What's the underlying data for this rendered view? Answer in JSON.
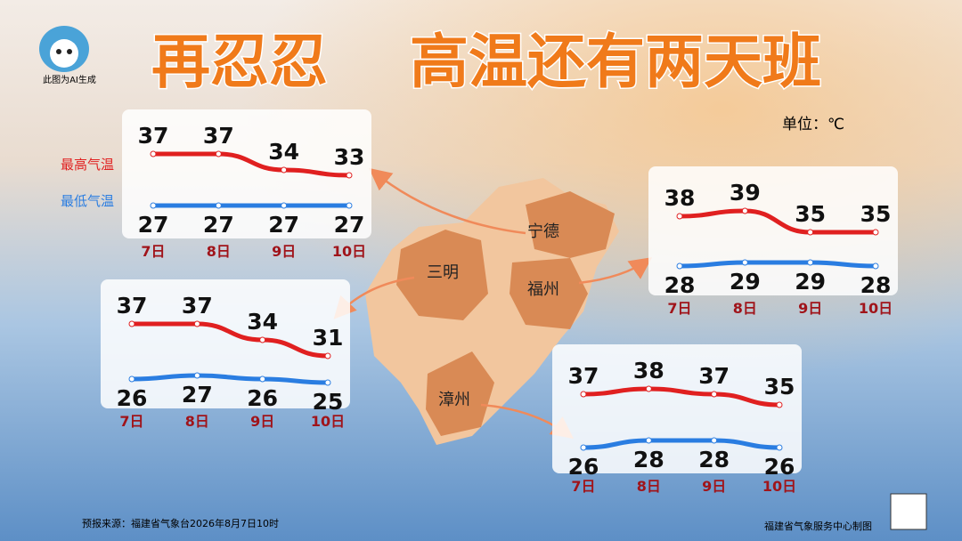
{
  "header": {
    "title_left": "再忍忍",
    "title_right": "高温还有两天班",
    "ai_note": "此图为AI生成",
    "unit": "单位：℃"
  },
  "footer": {
    "source": "预报来源：福建省气象台2026年8月7日10时",
    "maker": "福建省气象服务中心制图"
  },
  "chart_data": [
    {
      "type": "line",
      "title": "宁德",
      "categories": [
        "7日",
        "8日",
        "9日",
        "10日"
      ],
      "series": [
        {
          "name": "最高气温",
          "color": "#e02020",
          "values": [
            37,
            37,
            34,
            33
          ]
        },
        {
          "name": "最低气温",
          "color": "#2a7de1",
          "values": [
            27,
            27,
            27,
            27
          ]
        }
      ]
    },
    {
      "type": "line",
      "title": "三明",
      "categories": [
        "7日",
        "8日",
        "9日",
        "10日"
      ],
      "series": [
        {
          "color": "#e02020",
          "values": [
            37,
            37,
            34,
            31
          ]
        },
        {
          "color": "#2a7de1",
          "values": [
            26,
            27,
            26,
            25
          ]
        }
      ]
    },
    {
      "type": "line",
      "title": "福州",
      "categories": [
        "7日",
        "8日",
        "9日",
        "10日"
      ],
      "series": [
        {
          "color": "#e02020",
          "values": [
            38,
            39,
            35,
            35
          ]
        },
        {
          "color": "#2a7de1",
          "values": [
            28,
            29,
            29,
            28
          ]
        }
      ]
    },
    {
      "type": "line",
      "title": "漳州",
      "categories": [
        "7日",
        "8日",
        "9日",
        "10日"
      ],
      "series": [
        {
          "color": "#e02020",
          "values": [
            37,
            38,
            37,
            35
          ]
        },
        {
          "color": "#2a7de1",
          "values": [
            26,
            28,
            28,
            26
          ]
        }
      ]
    }
  ]
}
